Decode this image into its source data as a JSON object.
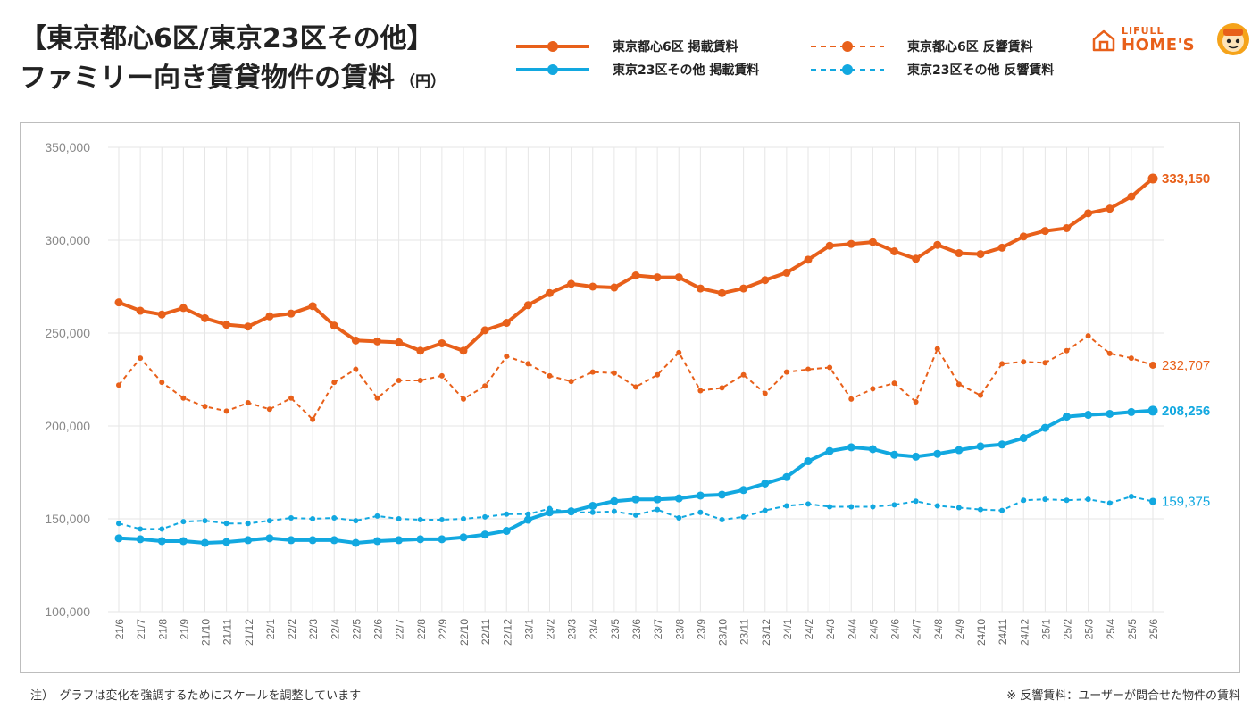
{
  "header": {
    "title_line1": "【東京都心6区/東京23区その他】",
    "title_line2": "ファミリー向き賃貸物件の賃料",
    "unit": "（円）"
  },
  "legend": {
    "s1": "東京都心6区 掲載賃料",
    "s2": "東京23区その他 掲載賃料",
    "s3": "東京都心6区 反響賃料",
    "s4": "東京23区その他 反響賃料"
  },
  "logo": {
    "line1": "LIFULL",
    "line2": "HOME'S"
  },
  "notes": {
    "left": "注）　グラフは変化を強調するためにスケールを調整しています",
    "right": "※ 反響賃料：ユーザーが問合せた物件の賃料"
  },
  "colors": {
    "orange": "#e8601a",
    "blue": "#12a8e0",
    "grid": "#e6e6e6"
  },
  "chart_data": {
    "type": "line",
    "ylim": [
      100000,
      350000
    ],
    "yticks": [
      "100,000",
      "150,000",
      "200,000",
      "250,000",
      "300,000",
      "350,000"
    ],
    "ytick_values": [
      100000,
      150000,
      200000,
      250000,
      300000,
      350000
    ],
    "categories": [
      "21/6",
      "21/7",
      "21/8",
      "21/9",
      "21/10",
      "21/11",
      "21/12",
      "22/1",
      "22/2",
      "22/3",
      "22/4",
      "22/5",
      "22/6",
      "22/7",
      "22/8",
      "22/9",
      "22/10",
      "22/11",
      "22/12",
      "23/1",
      "23/2",
      "23/3",
      "23/4",
      "23/5",
      "23/6",
      "23/7",
      "23/8",
      "23/9",
      "23/10",
      "23/11",
      "23/12",
      "24/1",
      "24/2",
      "24/3",
      "24/4",
      "24/5",
      "24/6",
      "24/7",
      "24/8",
      "24/9",
      "24/10",
      "24/11",
      "24/12",
      "25/1",
      "25/2",
      "25/3",
      "25/4",
      "25/5",
      "25/6"
    ],
    "series": [
      {
        "name": "東京都心6区 掲載賃料",
        "color": "#e8601a",
        "dashed": false,
        "bold": true,
        "end_label": "333,150",
        "values": [
          266500,
          262000,
          260000,
          263500,
          258000,
          254500,
          253500,
          259000,
          260500,
          264500,
          254000,
          246000,
          245500,
          245000,
          240500,
          244500,
          240500,
          251500,
          255500,
          265000,
          271500,
          276500,
          275000,
          274500,
          281000,
          280000,
          280000,
          274000,
          271500,
          274000,
          278500,
          282500,
          289500,
          297000,
          298000,
          299000,
          294000,
          290000,
          297500,
          293000,
          292500,
          296000,
          302000,
          305000,
          306500,
          314500,
          317000,
          323500,
          333150
        ]
      },
      {
        "name": "東京23区その他 掲載賃料",
        "color": "#12a8e0",
        "dashed": false,
        "bold": true,
        "end_label": "208,256",
        "values": [
          139500,
          139000,
          138000,
          138000,
          137000,
          137500,
          138500,
          139500,
          138500,
          138500,
          138500,
          137000,
          138000,
          138500,
          139000,
          139000,
          140000,
          141500,
          143500,
          149500,
          153500,
          154000,
          157000,
          159500,
          160500,
          160500,
          161000,
          162500,
          163000,
          165500,
          169000,
          172500,
          181000,
          186500,
          188500,
          187500,
          184500,
          183500,
          185000,
          187000,
          189000,
          190000,
          193500,
          199000,
          205000,
          206000,
          206500,
          207500,
          208256
        ]
      },
      {
        "name": "東京都心6区 反響賃料",
        "color": "#e8601a",
        "dashed": true,
        "bold": false,
        "end_label": "232,707",
        "values": [
          222000,
          236500,
          223500,
          215000,
          210500,
          208000,
          212500,
          209000,
          215000,
          203500,
          223500,
          230500,
          215000,
          224500,
          224500,
          227000,
          214500,
          221500,
          237500,
          233500,
          227000,
          224000,
          229000,
          228500,
          221000,
          227500,
          239500,
          219000,
          220500,
          227500,
          217500,
          229000,
          230500,
          231500,
          214500,
          220000,
          223000,
          213000,
          241500,
          222500,
          216500,
          233500,
          234500,
          234000,
          240500,
          248500,
          239000,
          236500,
          232707
        ]
      },
      {
        "name": "東京23区その他 反響賃料",
        "color": "#12a8e0",
        "dashed": true,
        "bold": false,
        "end_label": "159,375",
        "values": [
          147500,
          144500,
          144500,
          148500,
          149000,
          147500,
          147500,
          149000,
          150500,
          150000,
          150500,
          149000,
          151500,
          150000,
          149500,
          149500,
          150000,
          151000,
          152500,
          152500,
          155500,
          153500,
          153500,
          154000,
          152000,
          155000,
          150500,
          153500,
          149500,
          151000,
          154500,
          157000,
          158000,
          156500,
          156500,
          156500,
          157500,
          159500,
          157000,
          156000,
          155000,
          154500,
          160000,
          160500,
          160000,
          160500,
          158500,
          162000,
          159375
        ]
      }
    ]
  }
}
